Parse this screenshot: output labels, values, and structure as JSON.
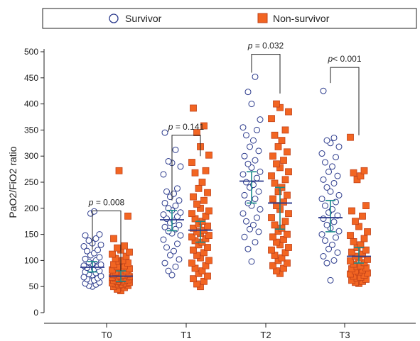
{
  "chart_data": {
    "type": "scatter",
    "ylabel": "PaO2/FiO2 ratio",
    "xlabel": "",
    "ylim": [
      0,
      500
    ],
    "yticks": [
      0,
      50,
      100,
      150,
      200,
      250,
      300,
      350,
      400,
      450,
      500
    ],
    "categories": [
      "T0",
      "T1",
      "T2",
      "T3"
    ],
    "legend": {
      "placement": "top",
      "items": [
        {
          "name": "Survivor",
          "marker": "open-circle"
        },
        {
          "name": "Non-survivor",
          "marker": "filled-square"
        }
      ]
    },
    "colors": {
      "survivor_edge": "#2b3a8c",
      "non_survivor_fill": "#f26522",
      "non_survivor_edge": "#c0421a",
      "median": "#2b3a8c",
      "iqr": "#1a8a8a",
      "axis": "#222222"
    },
    "annotations": [
      {
        "category": "T0",
        "prefix": "p",
        "text": " = 0.008",
        "bracket_top": 195,
        "left_end": 120,
        "right_end": 80
      },
      {
        "category": "T1",
        "prefix": "p",
        "text": " = 0.141",
        "bracket_top": 340,
        "left_end": 215,
        "right_end": 300
      },
      {
        "category": "T2",
        "prefix": "p",
        "text": " = 0.032",
        "bracket_top": 495,
        "left_end": 460,
        "right_end": 420
      },
      {
        "category": "T3",
        "prefix": "p",
        "text": "< 0.001",
        "bracket_top": 470,
        "left_end": 440,
        "right_end": 340
      }
    ],
    "series": [
      {
        "name": "Survivor",
        "groups": [
          {
            "category": "T0",
            "median": 87,
            "q1": 78,
            "q3": 98,
            "values": [
              190,
              194,
              150,
              148,
              142,
              138,
              133,
              130,
              127,
              120,
              118,
              114,
              110,
              106,
              103,
              100,
              97,
              94,
              92,
              90,
              88,
              86,
              84,
              82,
              80,
              78,
              76,
              74,
              72,
              70,
              68,
              66,
              64,
              62,
              60,
              58,
              56,
              54,
              52,
              50
            ]
          },
          {
            "category": "T1",
            "median": 178,
            "q1": 157,
            "q3": 196,
            "values": [
              345,
              312,
              290,
              287,
              280,
              265,
              238,
              232,
              228,
              222,
              215,
              210,
              205,
              200,
              196,
              192,
              188,
              184,
              180,
              176,
              172,
              168,
              164,
              160,
              156,
              152,
              148,
              140,
              132,
              125,
              118,
              110,
              102,
              95,
              88,
              80,
              72
            ]
          },
          {
            "category": "T2",
            "median": 252,
            "q1": 210,
            "q3": 270,
            "values": [
              452,
              423,
              400,
              370,
              355,
              350,
              340,
              330,
              318,
              310,
              300,
              292,
              285,
              278,
              270,
              265,
              258,
              250,
              245,
              240,
              232,
              225,
              218,
              210,
              205,
              198,
              190,
              182,
              175,
              168,
              160,
              155,
              145,
              135,
              122,
              98
            ]
          },
          {
            "category": "T3",
            "median": 182,
            "q1": 155,
            "q3": 215,
            "values": [
              425,
              335,
              330,
              325,
              318,
              305,
              298,
              288,
              280,
              270,
              262,
              255,
              248,
              240,
              232,
              225,
              218,
              212,
              205,
              198,
              192,
              186,
              180,
              174,
              168,
              162,
              156,
              150,
              144,
              138,
              130,
              122,
              115,
              108,
              100,
              95,
              62
            ]
          }
        ]
      },
      {
        "name": "Non-survivor",
        "groups": [
          {
            "category": "T0",
            "median": 70,
            "q1": 60,
            "q3": 80,
            "values": [
              272,
              185,
              142,
              128,
              124,
              120,
              116,
              112,
              108,
              104,
              100,
              98,
              95,
              92,
              90,
              88,
              86,
              84,
              82,
              80,
              78,
              76,
              75,
              74,
              73,
              72,
              71,
              70,
              69,
              68,
              67,
              66,
              65,
              64,
              63,
              62,
              61,
              60,
              59,
              58,
              57,
              56,
              55,
              54,
              53,
              52,
              50,
              48,
              45,
              42
            ]
          },
          {
            "category": "T1",
            "median": 158,
            "q1": 135,
            "q3": 175,
            "values": [
              392,
              358,
              345,
              318,
              302,
              288,
              272,
              268,
              250,
              238,
              230,
              222,
              215,
              208,
              200,
              195,
              190,
              185,
              180,
              175,
              170,
              166,
              162,
              158,
              155,
              152,
              148,
              145,
              142,
              138,
              135,
              130,
              125,
              120,
              115,
              110,
              105,
              100,
              95,
              90,
              85,
              80,
              75,
              70,
              65,
              60,
              55,
              50
            ]
          },
          {
            "category": "T2",
            "median": 210,
            "q1": 160,
            "q3": 240,
            "values": [
              400,
              393,
              385,
              372,
              350,
              340,
              330,
              318,
              308,
              300,
              292,
              285,
              278,
              270,
              262,
              255,
              248,
              240,
              232,
              225,
              218,
              212,
              205,
              198,
              190,
              182,
              175,
              168,
              162,
              156,
              150,
              145,
              140,
              135,
              130,
              125,
              120,
              115,
              110,
              105,
              100,
              95,
              90,
              85,
              80,
              75
            ]
          },
          {
            "category": "T3",
            "median": 108,
            "q1": 95,
            "q3": 125,
            "values": [
              336,
              272,
              268,
              262,
              255,
              205,
              195,
              185,
              175,
              165,
              155,
              148,
              142,
              136,
              130,
              125,
              120,
              116,
              112,
              108,
              105,
              102,
              99,
              96,
              93,
              90,
              88,
              86,
              84,
              82,
              80,
              78,
              76,
              74,
              72,
              70,
              68,
              66,
              64,
              62,
              60,
              58,
              56
            ]
          }
        ]
      }
    ]
  }
}
